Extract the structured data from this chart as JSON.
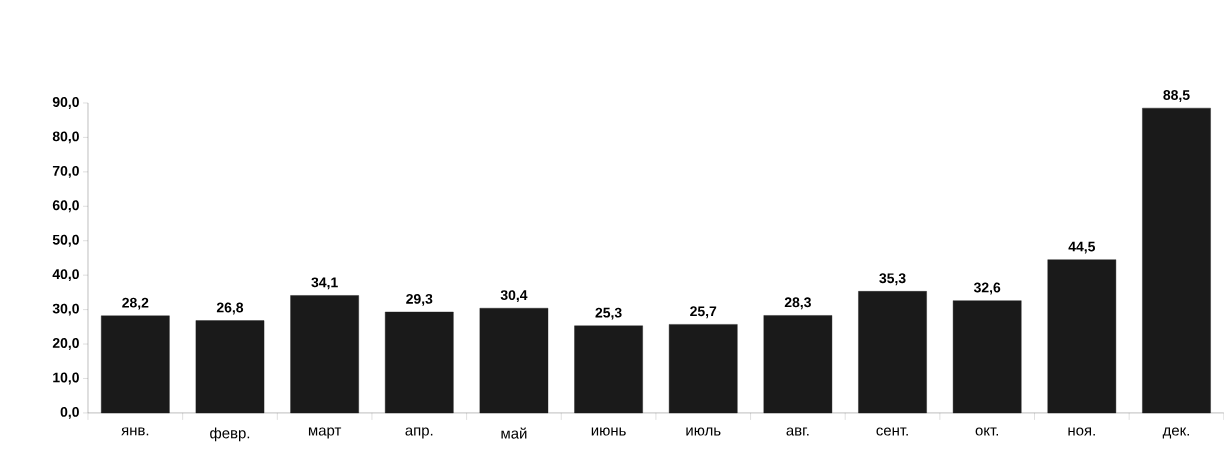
{
  "chart_data": {
    "type": "bar",
    "categories": [
      "янв.",
      "февр.",
      "март",
      "апр.",
      "май",
      "июнь",
      "июль",
      "авг.",
      "сент.",
      "окт.",
      "ноя.",
      "дек."
    ],
    "values": [
      28.2,
      26.8,
      34.1,
      29.3,
      30.4,
      25.3,
      25.7,
      28.3,
      35.3,
      32.6,
      44.5,
      88.5
    ],
    "value_labels": [
      "28,2",
      "26,8",
      "34,1",
      "29,3",
      "30,4",
      "25,3",
      "25,7",
      "28,3",
      "35,3",
      "32,6",
      "44,5",
      "88,5"
    ],
    "color": "#1a1a1a",
    "ylim": [
      0,
      90
    ],
    "yticks": [
      {
        "value": 0,
        "label": "0,0"
      },
      {
        "value": 10,
        "label": "10,0"
      },
      {
        "value": 20,
        "label": "20,0"
      },
      {
        "value": 30,
        "label": "30,0"
      },
      {
        "value": 40,
        "label": "40,0"
      },
      {
        "value": 50,
        "label": "50,0"
      },
      {
        "value": 60,
        "label": "60,0"
      },
      {
        "value": 70,
        "label": "70,0"
      },
      {
        "value": 80,
        "label": "80,0"
      },
      {
        "value": 90,
        "label": "90,0"
      }
    ],
    "grid": false
  }
}
